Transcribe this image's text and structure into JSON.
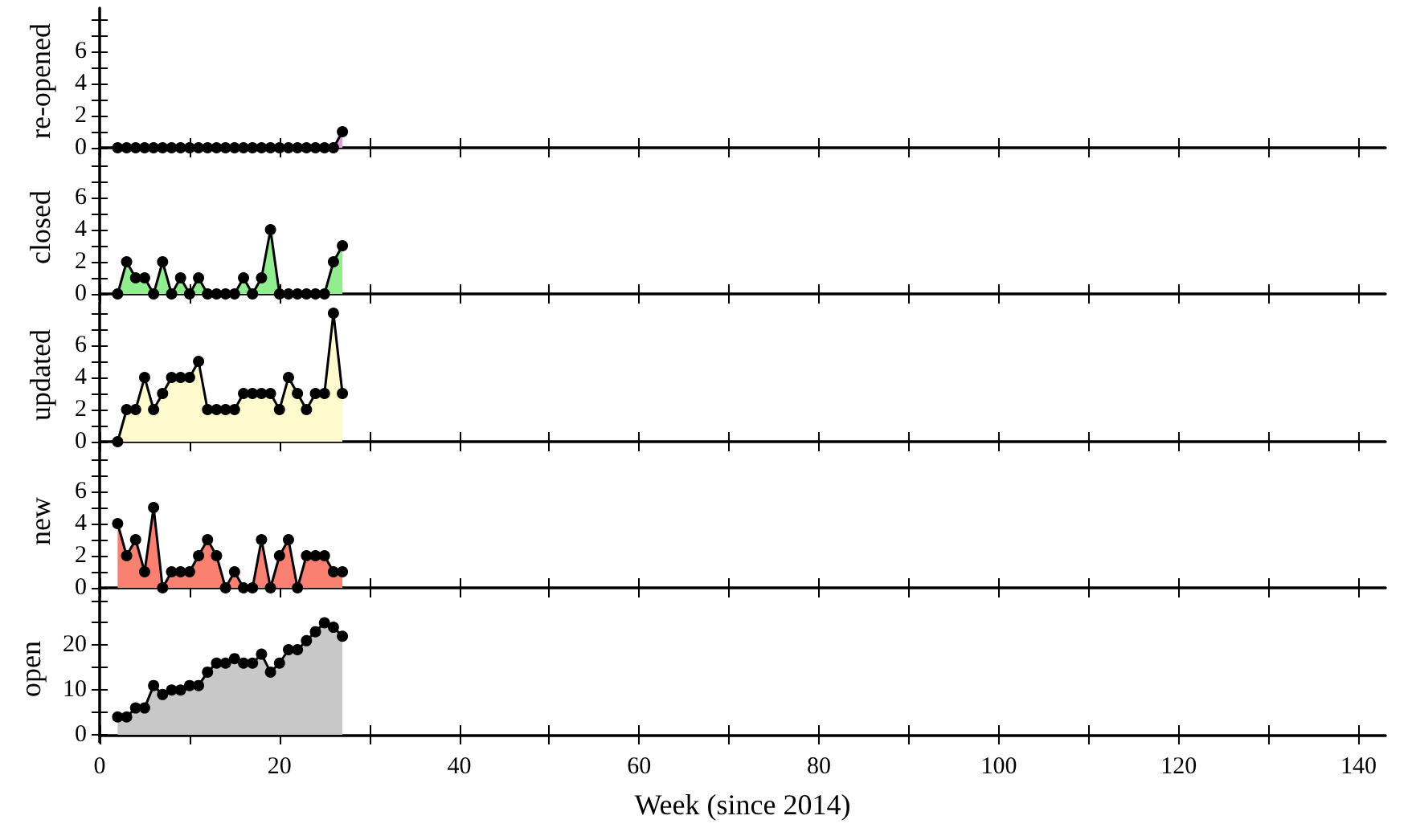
{
  "chart_data": [
    {
      "type": "area",
      "ylabel": "re-opened",
      "color": "#dda0dd",
      "marker": "circle",
      "tick_labels": "y",
      "x": [
        2,
        3,
        4,
        5,
        6,
        7,
        8,
        9,
        10,
        11,
        12,
        13,
        14,
        15,
        16,
        17,
        18,
        19,
        20,
        21,
        22,
        23,
        24,
        25,
        26,
        27
      ],
      "values": [
        0,
        0,
        0,
        0,
        0,
        0,
        0,
        0,
        0,
        0,
        0,
        0,
        0,
        0,
        0,
        0,
        0,
        0,
        0,
        0,
        0,
        0,
        0,
        0,
        0,
        1
      ],
      "xlim": [
        0,
        143
      ],
      "xticks": [
        0,
        {
          "value": 10,
          "label": null
        },
        20,
        {
          "value": 30,
          "label": null
        },
        40,
        {
          "value": 50,
          "label": null
        },
        60,
        {
          "value": 70,
          "label": null
        },
        80,
        {
          "value": 90,
          "label": null
        },
        100,
        {
          "value": 110,
          "label": null
        },
        120,
        {
          "value": 130,
          "label": null
        },
        140
      ],
      "ylim": [
        -0.4,
        8.7
      ],
      "yticks": [
        0,
        {
          "value": 1,
          "label": null
        },
        2,
        {
          "value": 3,
          "label": null
        },
        4,
        {
          "value": 5,
          "label": null
        },
        6,
        {
          "value": 7,
          "label": null
        },
        {
          "value": 8,
          "label": null
        }
      ]
    },
    {
      "type": "area",
      "ylabel": "closed",
      "color": "#90ee90",
      "marker": "circle",
      "tick_labels": "y",
      "x": [
        2,
        3,
        4,
        5,
        6,
        7,
        8,
        9,
        10,
        11,
        12,
        13,
        14,
        15,
        16,
        17,
        18,
        19,
        20,
        21,
        22,
        23,
        24,
        25,
        26,
        27
      ],
      "values": [
        0,
        2,
        1,
        1,
        0,
        2,
        0,
        1,
        0,
        1,
        0,
        0,
        0,
        0,
        1,
        0,
        1,
        4,
        0,
        0,
        0,
        0,
        0,
        0,
        2,
        3
      ],
      "xlim": [
        0,
        143
      ],
      "xticks": [
        0,
        {
          "value": 10,
          "label": null
        },
        20,
        {
          "value": 30,
          "label": null
        },
        40,
        {
          "value": 50,
          "label": null
        },
        60,
        {
          "value": 70,
          "label": null
        },
        80,
        {
          "value": 90,
          "label": null
        },
        100,
        {
          "value": 110,
          "label": null
        },
        120,
        {
          "value": 130,
          "label": null
        },
        140
      ],
      "ylim": [
        -0.4,
        8.7
      ],
      "yticks": [
        0,
        {
          "value": 1,
          "label": null
        },
        2,
        {
          "value": 3,
          "label": null
        },
        4,
        {
          "value": 5,
          "label": null
        },
        6,
        {
          "value": 7,
          "label": null
        },
        {
          "value": 8,
          "label": null
        }
      ]
    },
    {
      "type": "area",
      "ylabel": "updated",
      "color": "#fffacd",
      "marker": "circle",
      "tick_labels": "y",
      "x": [
        2,
        3,
        4,
        5,
        6,
        7,
        8,
        9,
        10,
        11,
        12,
        13,
        14,
        15,
        16,
        17,
        18,
        19,
        20,
        21,
        22,
        23,
        24,
        25,
        26,
        27
      ],
      "values": [
        0,
        2,
        2,
        4,
        2,
        3,
        4,
        4,
        4,
        5,
        2,
        2,
        2,
        2,
        3,
        3,
        3,
        3,
        2,
        4,
        3,
        2,
        3,
        3,
        8,
        3
      ],
      "xlim": [
        0,
        143
      ],
      "xticks": [
        0,
        {
          "value": 10,
          "label": null
        },
        20,
        {
          "value": 30,
          "label": null
        },
        40,
        {
          "value": 50,
          "label": null
        },
        60,
        {
          "value": 70,
          "label": null
        },
        80,
        {
          "value": 90,
          "label": null
        },
        100,
        {
          "value": 110,
          "label": null
        },
        120,
        {
          "value": 130,
          "label": null
        },
        140
      ],
      "ylim": [
        -0.4,
        8.7
      ],
      "yticks": [
        0,
        {
          "value": 1,
          "label": null
        },
        2,
        {
          "value": 3,
          "label": null
        },
        4,
        {
          "value": 5,
          "label": null
        },
        6,
        {
          "value": 7,
          "label": null
        },
        {
          "value": 8,
          "label": null
        }
      ]
    },
    {
      "type": "area",
      "ylabel": "new",
      "color": "#fa8072",
      "marker": "circle",
      "tick_labels": "y",
      "x": [
        2,
        3,
        4,
        5,
        6,
        7,
        8,
        9,
        10,
        11,
        12,
        13,
        14,
        15,
        16,
        17,
        18,
        19,
        20,
        21,
        22,
        23,
        24,
        25,
        26,
        27
      ],
      "values": [
        4,
        2,
        3,
        1,
        5,
        0,
        1,
        1,
        1,
        2,
        3,
        2,
        0,
        1,
        0,
        0,
        3,
        0,
        2,
        3,
        0,
        2,
        2,
        2,
        1,
        1
      ],
      "xlim": [
        0,
        143
      ],
      "xticks": [
        0,
        {
          "value": 10,
          "label": null
        },
        20,
        {
          "value": 30,
          "label": null
        },
        40,
        {
          "value": 50,
          "label": null
        },
        60,
        {
          "value": 70,
          "label": null
        },
        80,
        {
          "value": 90,
          "label": null
        },
        100,
        {
          "value": 110,
          "label": null
        },
        120,
        {
          "value": 130,
          "label": null
        },
        140
      ],
      "ylim": [
        -0.4,
        8.7
      ],
      "yticks": [
        0,
        {
          "value": 1,
          "label": null
        },
        2,
        {
          "value": 3,
          "label": null
        },
        4,
        {
          "value": 5,
          "label": null
        },
        6,
        {
          "value": 7,
          "label": null
        },
        {
          "value": 8,
          "label": null
        }
      ]
    },
    {
      "type": "area",
      "ylabel": "open",
      "xlabel": "Week (since 2014)",
      "color": "#c8c8c8",
      "marker": "circle",
      "x": [
        2,
        3,
        4,
        5,
        6,
        7,
        8,
        9,
        10,
        11,
        12,
        13,
        14,
        15,
        16,
        17,
        18,
        19,
        20,
        21,
        22,
        23,
        24,
        25,
        26,
        27
      ],
      "values": [
        4,
        4,
        6,
        6,
        11,
        9,
        10,
        10,
        11,
        11,
        14,
        16,
        16,
        17,
        16,
        16,
        18,
        14,
        16,
        19,
        19,
        21,
        23,
        25,
        24,
        22
      ],
      "xlim": [
        0,
        143
      ],
      "xticks": [
        0,
        {
          "value": 10,
          "label": null
        },
        20,
        {
          "value": 30,
          "label": null
        },
        40,
        {
          "value": 50,
          "label": null
        },
        60,
        {
          "value": 70,
          "label": null
        },
        80,
        {
          "value": 90,
          "label": null
        },
        100,
        {
          "value": 110,
          "label": null
        },
        120,
        {
          "value": 130,
          "label": null
        },
        140
      ],
      "ylim": [
        -1.6,
        31
      ],
      "yticks": [
        0,
        {
          "value": 5,
          "label": null
        },
        10,
        {
          "value": 15,
          "label": null
        },
        20,
        {
          "value": 25,
          "label": null
        },
        {
          "value": 30,
          "label": null
        }
      ]
    }
  ]
}
